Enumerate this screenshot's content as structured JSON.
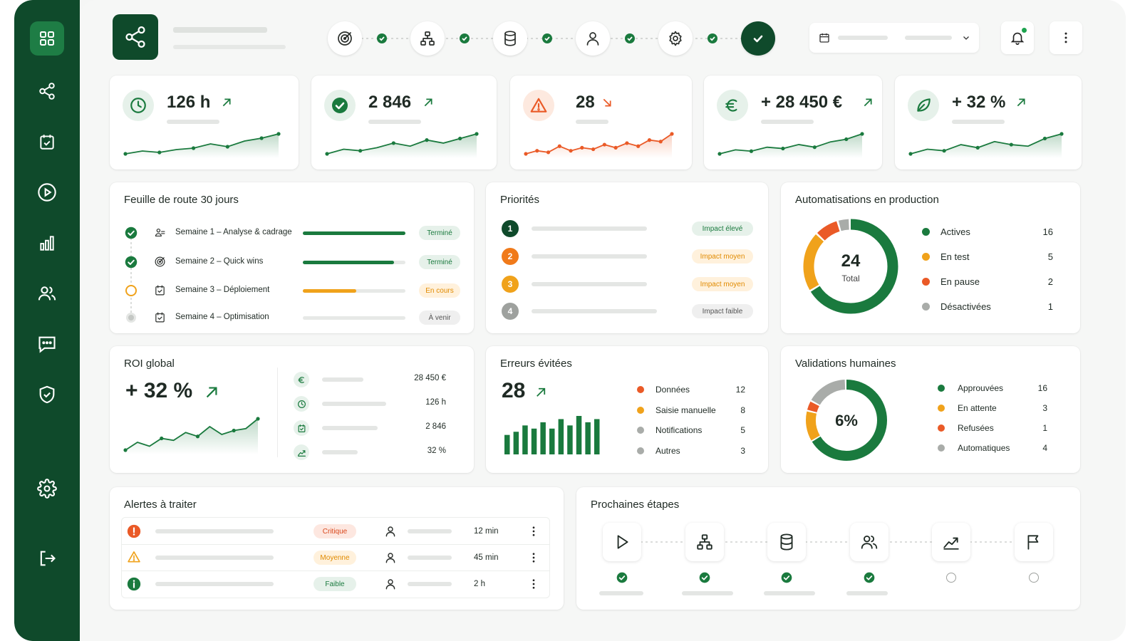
{
  "colors": {
    "primary": "#1a7a3e",
    "dark": "#0f4a2b",
    "orange": "#f0a21b",
    "red": "#ea5a27",
    "grey": "#a9aca9"
  },
  "sidebar": {
    "items": [
      "grid-icon",
      "share-icon",
      "calendar-check-icon",
      "play-icon",
      "bar-chart-icon",
      "users-icon",
      "chat-icon",
      "shield-icon",
      "settings-icon",
      "logout-icon"
    ]
  },
  "header": {
    "steps": [
      "target-icon",
      "hierarchy-icon",
      "database-icon",
      "user-icon",
      "settings-icon",
      "check-icon"
    ]
  },
  "kpis": [
    {
      "value": "126 h",
      "trend": "up",
      "icon": "clock-icon",
      "series": [
        8,
        10,
        9,
        11,
        12,
        15,
        13,
        17,
        19,
        22
      ]
    },
    {
      "value": "2 846",
      "trend": "up",
      "icon": "check-circle-icon",
      "series": [
        7,
        10,
        9,
        11,
        14,
        12,
        16,
        14,
        17,
        20
      ]
    },
    {
      "value": "28",
      "trend": "down",
      "icon": "warning-icon",
      "series": [
        8,
        10,
        9,
        13,
        10,
        12,
        11,
        14,
        12,
        15,
        13,
        17,
        16,
        21
      ]
    },
    {
      "value": "+ 28 450 €",
      "trend": "up",
      "icon": "euro-icon",
      "series": [
        8,
        11,
        10,
        13,
        12,
        15,
        13,
        17,
        19,
        23
      ]
    },
    {
      "value": "+ 32 %",
      "trend": "up",
      "icon": "leaf-icon",
      "series": [
        8,
        11,
        10,
        14,
        12,
        16,
        14,
        13,
        18,
        21
      ]
    }
  ],
  "roadmap": {
    "title": "Feuille de route 30 jours",
    "rows": [
      {
        "label": "Semaine 1 – Analyse & cadrage",
        "status": "Terminé",
        "progress": 1.0,
        "state": "done"
      },
      {
        "label": "Semaine 2 – Quick wins",
        "status": "Terminé",
        "progress": 0.89,
        "state": "done"
      },
      {
        "label": "Semaine 3 – Déploiement",
        "status": "En cours",
        "progress": 0.52,
        "state": "current"
      },
      {
        "label": "Semaine 4 – Optimisation",
        "status": "À venir",
        "progress": 0,
        "state": "todo"
      }
    ]
  },
  "priorities": {
    "title": "Priorités",
    "rows": [
      {
        "num": "1",
        "impact": "Impact élevé",
        "level": "high"
      },
      {
        "num": "2",
        "impact": "Impact moyen",
        "level": "medium"
      },
      {
        "num": "3",
        "impact": "Impact moyen",
        "level": "medium"
      },
      {
        "num": "4",
        "impact": "Impact faible",
        "level": "low"
      }
    ]
  },
  "automations": {
    "title": "Automatisations en production",
    "total": "24",
    "total_label": "Total",
    "items": [
      {
        "label": "Actives",
        "value": "16",
        "color": "#1a7a3e"
      },
      {
        "label": "En test",
        "value": "5",
        "color": "#f0a21b"
      },
      {
        "label": "En pause",
        "value": "2",
        "color": "#ea5a27"
      },
      {
        "label": "Désactivées",
        "value": "1",
        "color": "#a9aca9"
      }
    ]
  },
  "roi": {
    "title": "ROI global",
    "value": "+ 32 %",
    "series": [
      4,
      8,
      6,
      10,
      9,
      13,
      11,
      16,
      12,
      14,
      15,
      20
    ],
    "rows": [
      {
        "icon": "euro-icon",
        "value": "28 450 €"
      },
      {
        "icon": "clock-icon",
        "value": "126 h"
      },
      {
        "icon": "calendar-check-icon",
        "value": "2 846"
      },
      {
        "icon": "trend-icon",
        "value": "32 %"
      }
    ]
  },
  "errors": {
    "title": "Erreurs évitées",
    "value": "28",
    "bars": [
      3,
      4,
      6,
      5,
      7,
      5,
      8,
      6,
      9,
      7,
      8
    ],
    "items": [
      {
        "label": "Données",
        "value": "12",
        "color": "#ea5a27"
      },
      {
        "label": "Saisie manuelle",
        "value": "8",
        "color": "#f0a21b"
      },
      {
        "label": "Notifications",
        "value": "5",
        "color": "#a9aca9"
      },
      {
        "label": "Autres",
        "value": "3",
        "color": "#a9aca9"
      }
    ]
  },
  "validations": {
    "title": "Validations humaines",
    "center": "6%",
    "items": [
      {
        "label": "Approuvées",
        "value": "16",
        "color": "#1a7a3e"
      },
      {
        "label": "En attente",
        "value": "3",
        "color": "#f0a21b"
      },
      {
        "label": "Refusées",
        "value": "1",
        "color": "#ea5a27"
      },
      {
        "label": "Automatiques",
        "value": "4",
        "color": "#a9aca9"
      }
    ]
  },
  "alerts": {
    "title": "Alertes à traiter",
    "rows": [
      {
        "severity": "Critique",
        "time": "12 min",
        "icon": "alert-circle-icon"
      },
      {
        "severity": "Moyenne",
        "time": "45 min",
        "icon": "warning-icon"
      },
      {
        "severity": "Faible",
        "time": "2 h",
        "icon": "info-icon"
      }
    ]
  },
  "next_steps": {
    "title": "Prochaines étapes",
    "steps": [
      {
        "icon": "play-icon",
        "done": true
      },
      {
        "icon": "hierarchy-icon",
        "done": true
      },
      {
        "icon": "database-icon",
        "done": true
      },
      {
        "icon": "users-icon",
        "done": true
      },
      {
        "icon": "trend-icon",
        "done": false
      },
      {
        "icon": "flag-icon",
        "done": false
      }
    ]
  }
}
